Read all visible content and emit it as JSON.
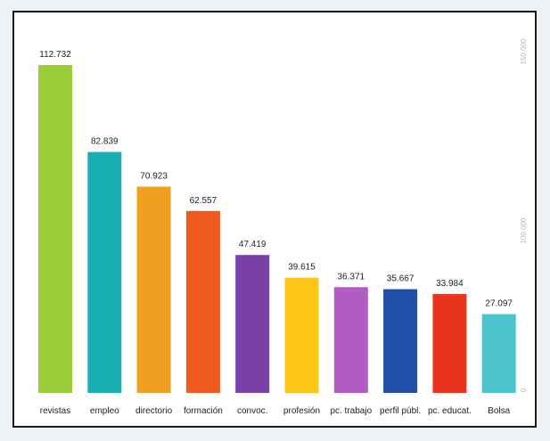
{
  "chart_data": {
    "type": "bar",
    "categories": [
      "revistas",
      "empleo",
      "directorio",
      "formación",
      "convoc.",
      "profesión",
      "pc. trabajo",
      "perfil públ.",
      "pc. educat.",
      "Bolsa"
    ],
    "values": [
      112732,
      82839,
      70923,
      62557,
      47419,
      39615,
      36371,
      35667,
      33984,
      27097
    ],
    "value_labels": [
      "112.732",
      "82.839",
      "70.923",
      "62.557",
      "47.419",
      "39.615",
      "36.371",
      "35.667",
      "33.984",
      "27.097"
    ],
    "colors": [
      "#9ccc3a",
      "#1ab0b3",
      "#f0a020",
      "#f05a1e",
      "#7b3fa8",
      "#ffc61a",
      "#b05cc0",
      "#1f4fa8",
      "#e8341e",
      "#4cc4cc"
    ],
    "y_ticks": [
      "150,000",
      "100,000",
      "0"
    ],
    "ylim": [
      0,
      120000
    ],
    "title": "",
    "xlabel": "",
    "ylabel": "",
    "grid": false,
    "legend": "none"
  }
}
